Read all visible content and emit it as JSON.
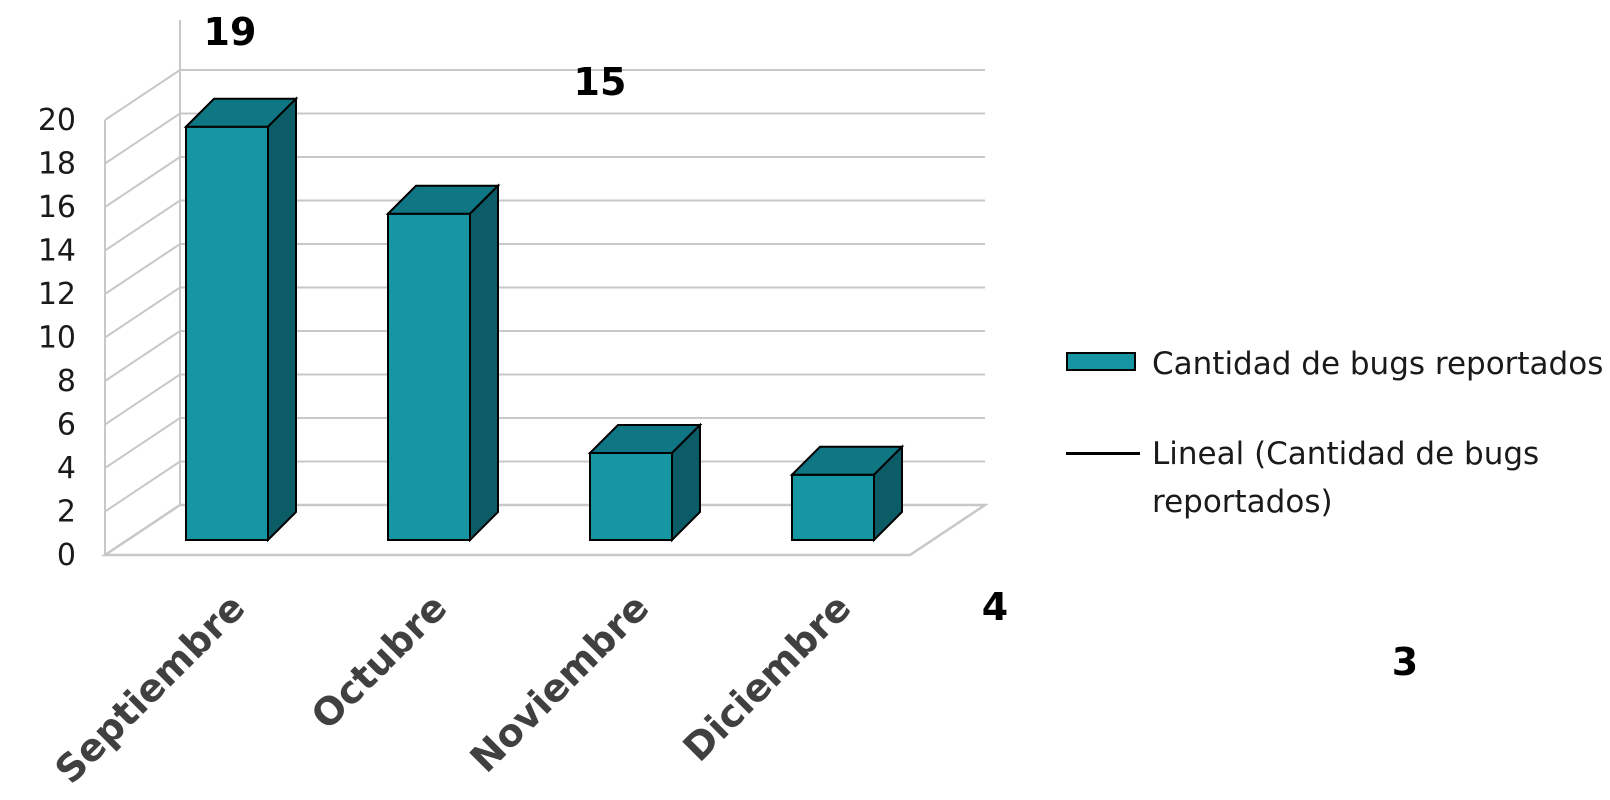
{
  "chart_data": {
    "type": "bar",
    "categories": [
      "Septiembre",
      "Octubre",
      "Noviembre",
      "Diciembre"
    ],
    "series": [
      {
        "name": "Cantidad de bugs reportados",
        "values": [
          19,
          15,
          4,
          3
        ]
      }
    ],
    "trendline": {
      "name": "Lineal (Cantidad de bugs reportados)",
      "type": "linear"
    },
    "data_labels": [
      "19",
      "15",
      "4",
      "3"
    ],
    "y_ticks": [
      "0",
      "2",
      "4",
      "6",
      "8",
      "10",
      "12",
      "14",
      "16",
      "18",
      "20"
    ],
    "ylim": [
      0,
      20
    ],
    "grid": true,
    "legend_position": "right",
    "style": "3d-column",
    "colors": {
      "bar_front": "#1695a3",
      "bar_side": "#0b5c66",
      "bar_top": "#0f7683",
      "grid": "#c8c8c8",
      "axis_text": "#1a1a1a"
    }
  },
  "legend": {
    "bar_label": "Cantidad de bugs reportados",
    "line_label": "Lineal (Cantidad de bugs reportados)"
  }
}
